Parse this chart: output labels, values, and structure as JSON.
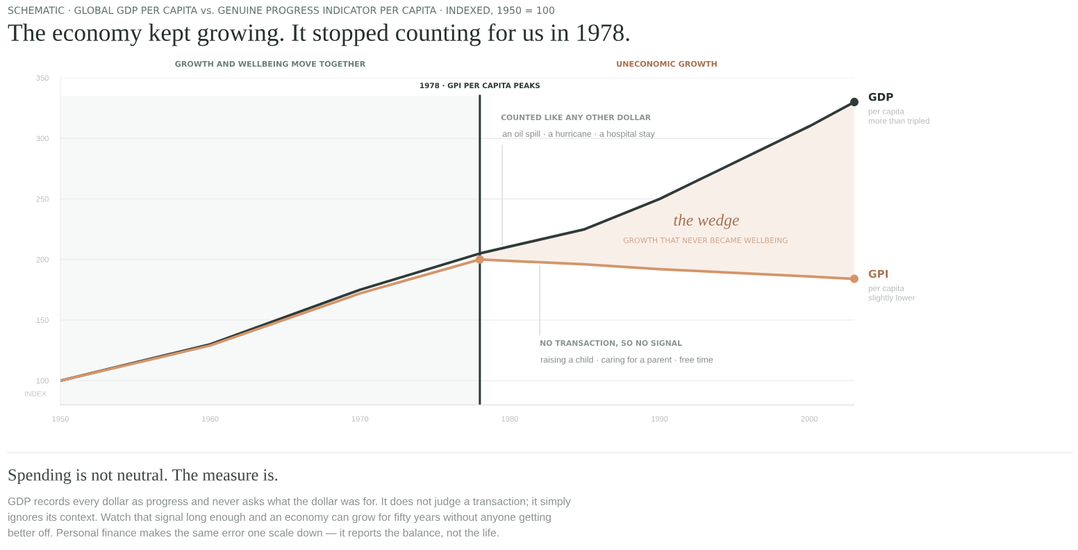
{
  "chart_data": {
    "type": "line",
    "subtitle": "SCHEMATIC · GLOBAL GDP PER CAPITA vs. GENUINE PROGRESS INDICATOR PER CAPITA · INDEXED, 1950 = 100",
    "title": "The economy kept growing. It stopped counting for us in 1978.",
    "ylabel": "INDEX",
    "x": [
      1950,
      1960,
      1970,
      1978,
      1985,
      1990,
      2000,
      2003
    ],
    "series": [
      {
        "name": "GDP",
        "color": "#2f3b39",
        "values": [
          100,
          130,
          175,
          205,
          225,
          250,
          310,
          330
        ]
      },
      {
        "name": "GPI",
        "color": "#d4956a",
        "values": [
          100,
          129,
          172,
          200,
          196,
          192,
          186,
          184
        ],
        "lower": [
          null,
          null,
          null,
          200,
          196,
          192,
          186,
          184
        ],
        "upper": [
          null,
          null,
          null,
          205,
          225,
          250,
          310,
          330
        ]
      },
      {
        "type": "scatter",
        "color": "#2f3b39",
        "values": [
          null,
          null,
          null,
          null,
          null,
          null,
          null,
          330
        ]
      },
      {
        "type": "scatter",
        "color": "#d4956a",
        "values": [
          null,
          null,
          null,
          200,
          null,
          null,
          null,
          184
        ]
      }
    ],
    "xlim": [
      1950,
      2003
    ],
    "ylim": [
      80,
      350
    ],
    "xticks": [
      1950,
      1960,
      1970,
      1980,
      1990,
      2000
    ],
    "yticks": [
      100,
      150,
      200,
      250,
      300,
      350
    ],
    "grid": "y",
    "bands": [
      {
        "axis": "x",
        "from": 1950,
        "to": 1978,
        "color": "#f7f9f8"
      }
    ],
    "ref_lines": [
      {
        "axis": "x",
        "value": 1978,
        "label": "1978 · GPI PER CAPITA PEAKS",
        "color": "#2d3a38"
      }
    ],
    "annotations": [
      "GROWTH AND WELLBEING MOVE TOGETHER",
      "UNECONOMIC GROWTH",
      "COUNTED LIKE ANY OTHER DOLLAR",
      {
        "text": "an oil spill · a hurricane · a hospital stay",
        "x": 1979.5,
        "y": 212
      },
      {
        "text": "NO TRANSACTION, SO NO SIGNAL",
        "x": 1982,
        "y": 195
      },
      "raising a child · caring for a parent · free time",
      "the wedge",
      "GROWTH THAT NEVER BECAME WELLBEING",
      {
        "text": "per capita\nmore than tripled",
        "x": 2003,
        "y": 330
      },
      {
        "text": "per capita\nslightly lower",
        "x": 2003,
        "y": 184
      },
      "Spending is not neutral. The measure is.",
      "GDP records every dollar as progress and never asks what the dollar was for. It does not judge a transaction; it simply\nignores its context. Watch that signal long enough and an economy can grow for fifty years without anyone getting\nbetter off. Personal finance makes the same error one scale down — it reports the balance, not the life."
    ]
  }
}
